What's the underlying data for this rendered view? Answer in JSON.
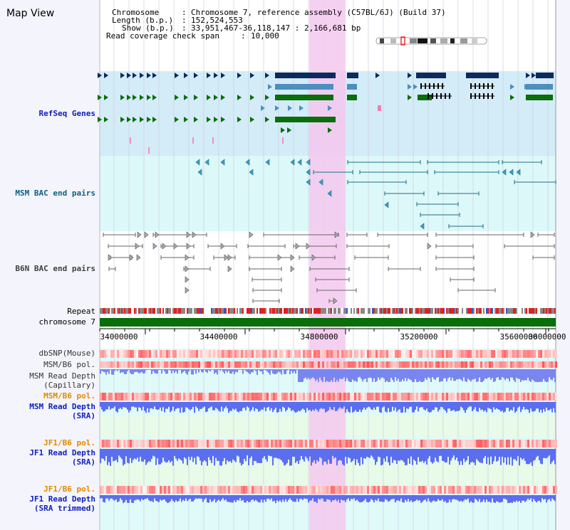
{
  "view_title": "Map View",
  "header": {
    "chromosome_label": "Chromosome",
    "chromosome_value": "Chromosome 7, reference assembly (C57BL/6J) (Build 37)",
    "length_label": "Length (b.p.)",
    "length_value": "152,524,553",
    "show_label": "Show (b.p.)",
    "show_value": "33,951,467-36,118,147 : 2,166,681 bp",
    "coverage_label": "Read coverage check span",
    "coverage_value": "10,000"
  },
  "tracks": {
    "refseq": "RefSeq Genes",
    "msm_bac": "MSM BAC end pairs",
    "b6n_bac": "B6N BAC end pairs",
    "repeat": "Repeat",
    "chromosome": "chromosome 7",
    "dbsnp": "dbSNP(Mouse)",
    "msm_b6_pol_1": "MSM/B6 pol.",
    "msm_depth_cap_1": "MSM Read Depth",
    "msm_depth_cap_2": "(Capillary)",
    "msm_b6_pol_2": "MSM/B6 pol.",
    "msm_depth_sra_1": "MSM Read Depth",
    "msm_depth_sra_2": "(SRA)",
    "jf1_b6_pol_1": "JF1/B6 pol.",
    "jf1_depth_sra_1": "JF1 Read Depth",
    "jf1_depth_sra_2": "(SRA)",
    "jf1_b6_pol_2": "JF1/B6 pol.",
    "jf1_depth_trim_1": "JF1 Read Depth",
    "jf1_depth_trim_2": "(SRA trimmed)"
  },
  "axis": {
    "ticks": [
      "34000000",
      "34400000",
      "34800000",
      "35200000",
      "35600000",
      "36000000"
    ]
  },
  "colors": {
    "refseq_dark": "#0d2a5c",
    "refseq_mid": "#4b8fbf",
    "refseq_green": "#0a6e0a",
    "bac_line": "#1e6e8c",
    "b6n_line": "#666666",
    "highlight": "#f5c8ee",
    "chrom_bar": "#0a6e0a",
    "depth_blue": "#3344ee"
  }
}
